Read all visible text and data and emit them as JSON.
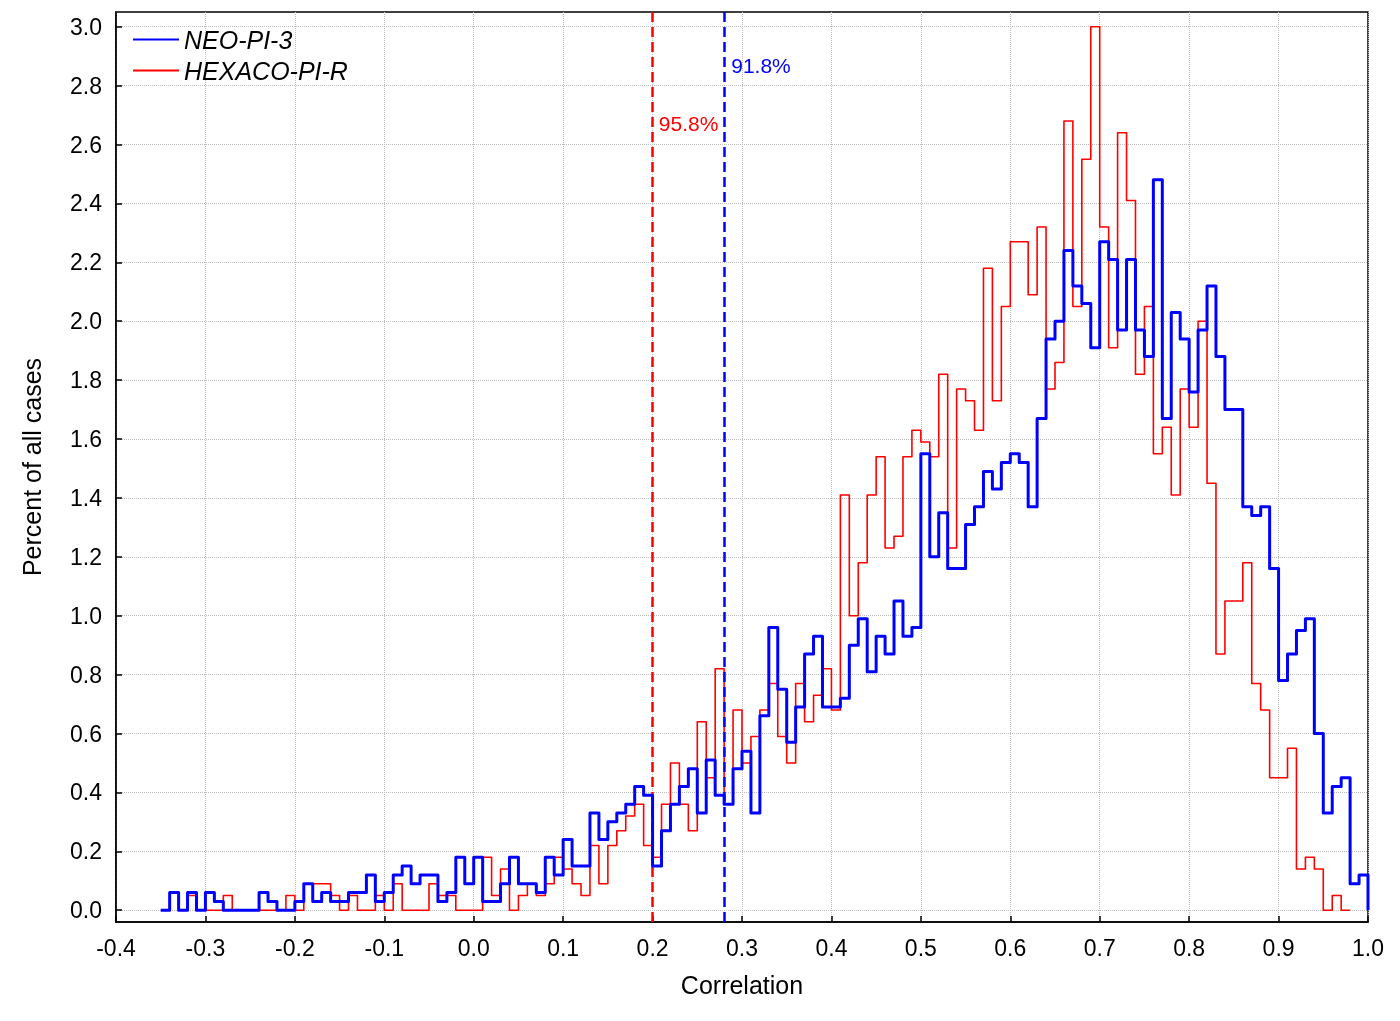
{
  "chart_data": {
    "type": "histogram",
    "xlabel": "Correlation",
    "ylabel": "Percent of all cases",
    "bins": [
      -0.35,
      -0.34,
      -0.33,
      -0.32,
      -0.31,
      -0.3,
      -0.29,
      -0.28,
      -0.27,
      -0.26,
      -0.25,
      -0.24,
      -0.23,
      -0.22,
      -0.21,
      -0.2,
      -0.19,
      -0.18,
      -0.17,
      -0.16,
      -0.15,
      -0.14,
      -0.13,
      -0.12,
      -0.11,
      -0.1,
      -0.09,
      -0.08,
      -0.07,
      -0.06,
      -0.05,
      -0.04,
      -0.03,
      -0.02,
      -0.01,
      0,
      0.01,
      0.02,
      0.03,
      0.04,
      0.05,
      0.06,
      0.07,
      0.08,
      0.09,
      0.1,
      0.11,
      0.12,
      0.13,
      0.14,
      0.15,
      0.16,
      0.17,
      0.18,
      0.19,
      0.2,
      0.21,
      0.22,
      0.23,
      0.24,
      0.25,
      0.26,
      0.27,
      0.28,
      0.29,
      0.3,
      0.31,
      0.32,
      0.33,
      0.34,
      0.35,
      0.36,
      0.37,
      0.38,
      0.39,
      0.4,
      0.41,
      0.42,
      0.43,
      0.44,
      0.45,
      0.46,
      0.47,
      0.48,
      0.49,
      0.5,
      0.51,
      0.52,
      0.53,
      0.54,
      0.55,
      0.56,
      0.57,
      0.58,
      0.59,
      0.6,
      0.61,
      0.62,
      0.63,
      0.64,
      0.65,
      0.66,
      0.67,
      0.68,
      0.69,
      0.7,
      0.71,
      0.72,
      0.73,
      0.74,
      0.75,
      0.76,
      0.77,
      0.78,
      0.79,
      0.8,
      0.81,
      0.82,
      0.83,
      0.84,
      0.85,
      0.86,
      0.87,
      0.88,
      0.89,
      0.9,
      0.91,
      0.92,
      0.93,
      0.94,
      0.95,
      0.96,
      0.97,
      0.98,
      0.99,
      1.0
    ],
    "series": [
      {
        "name": "NEO-PI-3",
        "color": "#0000ff",
        "values": [
          0,
          0.06,
          0,
          0.06,
          0,
          0.06,
          0.03,
          0,
          0,
          0,
          0,
          0.06,
          0.03,
          0,
          0,
          0.03,
          0.09,
          0.03,
          0.06,
          0.03,
          0.03,
          0.06,
          0.06,
          0.12,
          0.03,
          0.06,
          0.12,
          0.15,
          0.09,
          0.12,
          0.12,
          0.03,
          0.06,
          0.18,
          0.09,
          0.18,
          0.03,
          0.03,
          0.09,
          0.18,
          0.09,
          0.09,
          0.06,
          0.18,
          0.12,
          0.24,
          0.15,
          0.15,
          0.33,
          0.24,
          0.3,
          0.33,
          0.36,
          0.42,
          0.39,
          0.15,
          0.27,
          0.36,
          0.42,
          0.48,
          0.33,
          0.51,
          0.39,
          0.36,
          0.48,
          0.54,
          0.33,
          0.66,
          0.96,
          0.75,
          0.57,
          0.69,
          0.87,
          0.93,
          0.69,
          0.69,
          0.72,
          0.9,
          0.99,
          0.81,
          0.93,
          0.87,
          1.05,
          0.93,
          0.96,
          1.55,
          1.2,
          1.35,
          1.16,
          1.16,
          1.31,
          1.37,
          1.49,
          1.43,
          1.52,
          1.55,
          1.52,
          1.37,
          1.67,
          1.94,
          2.0,
          2.24,
          2.12,
          2.06,
          1.91,
          2.27,
          2.21,
          1.97,
          2.21,
          1.97,
          1.88,
          2.48,
          1.67,
          2.03,
          1.94,
          1.76,
          1.97,
          2.12,
          1.88,
          1.7,
          1.7,
          1.37,
          1.34,
          1.37,
          1.16,
          0.78,
          0.87,
          0.95,
          0.99,
          0.6,
          0.33,
          0.42,
          0.45,
          0.09,
          0.12
        ]
      },
      {
        "name": "HEXACO-PI-R",
        "color": "#ff0000",
        "bins": [
          -0.33,
          -0.32,
          -0.31,
          -0.3,
          -0.29,
          -0.28,
          -0.27,
          -0.26,
          -0.25,
          -0.24,
          -0.23,
          -0.22,
          -0.21,
          -0.2,
          -0.19,
          -0.18,
          -0.17,
          -0.16,
          -0.15,
          -0.14,
          -0.13,
          -0.12,
          -0.11,
          -0.1,
          -0.09,
          -0.08,
          -0.07,
          -0.06,
          -0.05,
          -0.04,
          -0.03,
          -0.02,
          -0.01,
          0,
          0.01,
          0.02,
          0.03,
          0.04,
          0.05,
          0.06,
          0.07,
          0.08,
          0.09,
          0.1,
          0.11,
          0.12,
          0.13,
          0.14,
          0.15,
          0.16,
          0.17,
          0.18,
          0.19,
          0.2,
          0.21,
          0.22,
          0.23,
          0.24,
          0.25,
          0.26,
          0.27,
          0.28,
          0.29,
          0.3,
          0.31,
          0.32,
          0.33,
          0.34,
          0.35,
          0.36,
          0.37,
          0.38,
          0.39,
          0.4,
          0.41,
          0.42,
          0.43,
          0.44,
          0.45,
          0.46,
          0.47,
          0.48,
          0.49,
          0.5,
          0.51,
          0.52,
          0.53,
          0.54,
          0.55,
          0.56,
          0.57,
          0.58,
          0.59,
          0.6,
          0.61,
          0.62,
          0.63,
          0.64,
          0.65,
          0.66,
          0.67,
          0.68,
          0.69,
          0.7,
          0.71,
          0.72,
          0.73,
          0.74,
          0.75,
          0.76,
          0.77,
          0.78,
          0.79,
          0.8,
          0.81,
          0.82,
          0.83,
          0.84,
          0.85,
          0.86,
          0.87,
          0.88,
          0.89,
          0.9,
          0.91,
          0.92,
          0.93,
          0.94,
          0.95,
          0.96,
          0.97,
          0.98
        ],
        "values": [
          0,
          0.05,
          0,
          0,
          0,
          0.05,
          0,
          0,
          0,
          0,
          0,
          0,
          0.05,
          0,
          0.09,
          0.09,
          0.09,
          0.05,
          0,
          0.05,
          0,
          0,
          0.05,
          0,
          0.09,
          0,
          0,
          0,
          0.09,
          0.05,
          0.05,
          0,
          0,
          0,
          0.18,
          0.05,
          0.14,
          0,
          0.05,
          0.09,
          0.05,
          0.09,
          0.18,
          0.14,
          0.09,
          0.05,
          0.22,
          0.09,
          0.22,
          0.27,
          0.32,
          0.36,
          0.22,
          0.18,
          0.36,
          0.5,
          0.36,
          0.27,
          0.64,
          0.45,
          0.82,
          0.36,
          0.68,
          0.5,
          0.59,
          0.68,
          0.77,
          0.59,
          0.5,
          0.77,
          0.64,
          0.73,
          0.82,
          0.68,
          1.41,
          1.0,
          1.18,
          1.41,
          1.54,
          1.23,
          1.27,
          1.54,
          1.63,
          1.59,
          1.54,
          1.82,
          1.23,
          1.77,
          1.73,
          1.63,
          2.18,
          1.73,
          2.05,
          2.27,
          2.27,
          2.09,
          2.32,
          1.77,
          1.86,
          2.68,
          2.05,
          2.55,
          3.0,
          2.32,
          1.91,
          2.64,
          2.41,
          1.82,
          2.05,
          1.55,
          1.64,
          1.41,
          1.77,
          1.64,
          2.0,
          1.45,
          0.87,
          1.05,
          1.05,
          1.18,
          0.77,
          0.68,
          0.45,
          0.45,
          0.55,
          0.14,
          0.18,
          0.14,
          0,
          0.05,
          0
        ]
      }
    ],
    "xlim": [
      -0.4,
      1.0
    ],
    "xticks": [
      -0.4,
      -0.3,
      -0.2,
      -0.1,
      {
        "value": 0,
        "label": "0.0"
      },
      0.1,
      0.2,
      0.3,
      0.4,
      0.5,
      0.6,
      0.7,
      0.8,
      0.9,
      {
        "value": 1,
        "label": "1.0"
      }
    ],
    "ylim": [
      -0.04,
      3.05
    ],
    "yticks": [
      {
        "value": 0,
        "label": "0.0"
      },
      0.2,
      0.4,
      0.6,
      0.8,
      {
        "value": 1,
        "label": "1.0"
      },
      1.2,
      1.4,
      1.6,
      1.8,
      {
        "value": 2,
        "label": "2.0"
      },
      2.2,
      2.4,
      2.6,
      2.8,
      {
        "value": 3,
        "label": "3.0"
      }
    ],
    "ref_lines": [
      {
        "axis": "x",
        "value": 0.198,
        "color": "#ff0000",
        "line_style": "dashed"
      },
      {
        "axis": "x",
        "value": 0.279,
        "color": "#0000ff",
        "line_style": "dashed"
      }
    ],
    "annotations": [
      {
        "text": "95.8%",
        "x": 0.198,
        "y": 2.67
      },
      {
        "text": "91.8%",
        "x": 0.279,
        "y": 2.87
      }
    ],
    "grid": true,
    "legend": "top left"
  }
}
